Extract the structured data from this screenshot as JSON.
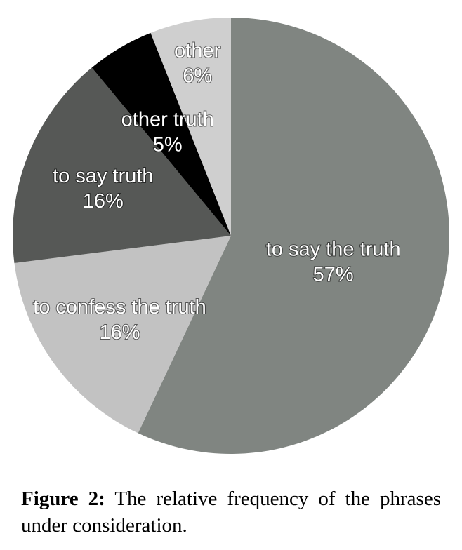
{
  "chart_data": {
    "type": "pie",
    "title": "",
    "slices": [
      {
        "label": "to say the truth",
        "value": 57,
        "value_label": "57%",
        "color": "#808581"
      },
      {
        "label": "to confess the truth",
        "value": 16,
        "value_label": "16%",
        "color": "#c2c2c2"
      },
      {
        "label": "to say truth",
        "value": 16,
        "value_label": "16%",
        "color": "#565856"
      },
      {
        "label": "other truth",
        "value": 5,
        "value_label": "5%",
        "color": "#000000"
      },
      {
        "label": "other",
        "value": 6,
        "value_label": "6%",
        "color": "#cfcfcf"
      }
    ]
  },
  "caption": {
    "label": "Figure 2:",
    "text": "The relative frequency of the phrases under consideration."
  }
}
